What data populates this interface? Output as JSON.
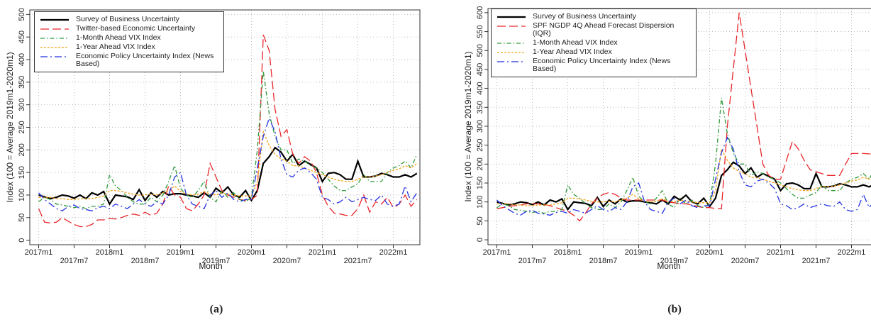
{
  "chart_data": [
    {
      "type": "line",
      "caption": "(a)",
      "x_label": "Month",
      "y_label": "Index (100 = Average 2019m1-2020m1)",
      "categories": [
        "2017m1",
        null,
        null,
        null,
        null,
        null,
        "2017m7",
        null,
        null,
        null,
        null,
        null,
        "2018m1",
        null,
        null,
        null,
        null,
        null,
        "2018m7",
        null,
        null,
        null,
        null,
        null,
        "2019m1",
        null,
        null,
        null,
        null,
        null,
        "2019m7",
        null,
        null,
        null,
        null,
        null,
        "2020m1",
        null,
        null,
        null,
        null,
        null,
        "2020m7",
        null,
        null,
        null,
        null,
        null,
        "2021m1",
        null,
        null,
        null,
        null,
        null,
        "2021m7",
        null,
        null,
        null,
        null,
        null,
        "2022m1",
        null,
        null,
        null,
        null
      ],
      "ylim": [
        -10,
        510
      ],
      "yticks": [
        0,
        50,
        100,
        150,
        200,
        250,
        300,
        350,
        400,
        450,
        500
      ],
      "grid": true,
      "series": [
        {
          "name": "Survey of Business Uncertainty",
          "color": "#000000",
          "dash": "",
          "width": 2.2,
          "values": [
            100,
            96,
            92,
            95,
            100,
            98,
            93,
            100,
            92,
            105,
            100,
            108,
            80,
            100,
            98,
            96,
            90,
            112,
            88,
            105,
            95,
            108,
            100,
            103,
            103,
            100,
            98,
            95,
            105,
            95,
            115,
            105,
            118,
            100,
            95,
            110,
            88,
            110,
            170,
            185,
            205,
            195,
            175,
            190,
            165,
            175,
            168,
            160,
            130,
            148,
            150,
            145,
            135,
            135,
            175,
            140,
            140,
            142,
            148,
            145,
            140,
            140,
            145,
            140,
            148
          ]
        },
        {
          "name": "Twitter-based Economic Uncertainty",
          "color": "#e8262a",
          "dash": "12,5",
          "width": 1.3,
          "values": [
            70,
            40,
            38,
            40,
            50,
            42,
            35,
            30,
            30,
            35,
            45,
            45,
            48,
            47,
            50,
            55,
            58,
            55,
            62,
            55,
            60,
            80,
            120,
            100,
            95,
            70,
            65,
            80,
            100,
            170,
            140,
            110,
            100,
            95,
            90,
            88,
            90,
            100,
            455,
            420,
            290,
            230,
            245,
            190,
            170,
            185,
            175,
            150,
            100,
            75,
            60,
            58,
            55,
            55,
            70,
            100,
            62,
            85,
            80,
            95,
            72,
            80,
            100,
            75,
            90
          ]
        },
        {
          "name": "1-Month Ahead VIX Index",
          "color": "#2f9a3a",
          "dash": "6,3,1.5,3",
          "width": 1.3,
          "values": [
            85,
            95,
            90,
            80,
            78,
            75,
            72,
            75,
            70,
            75,
            75,
            80,
            145,
            120,
            110,
            95,
            85,
            80,
            80,
            95,
            85,
            100,
            130,
            165,
            115,
            100,
            95,
            110,
            130,
            95,
            85,
            110,
            95,
            105,
            90,
            85,
            95,
            200,
            375,
            280,
            230,
            200,
            200,
            170,
            180,
            175,
            165,
            160,
            150,
            135,
            120,
            110,
            110,
            118,
            125,
            145,
            130,
            130,
            130,
            150,
            160,
            165,
            175,
            160,
            190
          ]
        },
        {
          "name": "1-Year Ahead VIX Index",
          "color": "#f5a21b",
          "dash": "3,2",
          "width": 1.3,
          "values": [
            95,
            95,
            95,
            92,
            92,
            90,
            90,
            92,
            92,
            92,
            95,
            98,
            110,
            110,
            108,
            105,
            102,
            100,
            100,
            102,
            100,
            105,
            110,
            120,
            108,
            102,
            100,
            102,
            108,
            102,
            100,
            105,
            102,
            100,
            98,
            98,
            98,
            130,
            240,
            210,
            190,
            180,
            175,
            165,
            165,
            160,
            155,
            150,
            145,
            140,
            135,
            132,
            130,
            130,
            135,
            140,
            140,
            142,
            145,
            150,
            155,
            158,
            165,
            160,
            170
          ]
        },
        {
          "name": "Economic Policy Uncertainty Index (News Based)",
          "color": "#2432e0",
          "dash": "10,4,2,4",
          "width": 1.3,
          "values": [
            105,
            90,
            80,
            70,
            65,
            75,
            78,
            70,
            68,
            65,
            72,
            75,
            70,
            80,
            75,
            70,
            80,
            90,
            80,
            75,
            85,
            80,
            100,
            140,
            150,
            100,
            80,
            75,
            70,
            100,
            110,
            95,
            105,
            90,
            85,
            90,
            90,
            160,
            230,
            270,
            240,
            180,
            145,
            140,
            155,
            160,
            150,
            135,
            95,
            90,
            80,
            85,
            95,
            85,
            90,
            95,
            90,
            88,
            100,
            80,
            75,
            80,
            120,
            85,
            105
          ]
        }
      ]
    },
    {
      "type": "line",
      "caption": "(b)",
      "x_label": "Month",
      "y_label": "Index (100 = Average 2019m1-2020m1)",
      "categories": [
        "2017m1",
        null,
        null,
        null,
        null,
        null,
        "2017m7",
        null,
        null,
        null,
        null,
        null,
        "2018m1",
        null,
        null,
        null,
        null,
        null,
        "2018m7",
        null,
        null,
        null,
        null,
        null,
        "2019m1",
        null,
        null,
        null,
        null,
        null,
        "2019m7",
        null,
        null,
        null,
        null,
        null,
        "2020m1",
        null,
        null,
        null,
        null,
        null,
        "2020m7",
        null,
        null,
        null,
        null,
        null,
        "2021m1",
        null,
        null,
        null,
        null,
        null,
        "2021m7",
        null,
        null,
        null,
        null,
        null,
        "2022m1",
        null,
        null,
        null,
        null
      ],
      "ylim": [
        -13,
        611
      ],
      "yticks": [
        0,
        50,
        100,
        150,
        200,
        250,
        300,
        350,
        400,
        450,
        500,
        550,
        600
      ],
      "grid": true,
      "series": [
        {
          "name": "Survey of Business Uncertainty",
          "color": "#000000",
          "dash": "",
          "width": 2.2,
          "values": [
            100,
            96,
            92,
            95,
            100,
            98,
            93,
            100,
            92,
            105,
            100,
            108,
            80,
            100,
            98,
            96,
            90,
            112,
            88,
            105,
            95,
            108,
            100,
            103,
            103,
            100,
            98,
            95,
            105,
            95,
            115,
            105,
            118,
            100,
            95,
            110,
            88,
            110,
            170,
            185,
            205,
            195,
            175,
            190,
            165,
            175,
            168,
            160,
            130,
            148,
            150,
            145,
            135,
            135,
            175,
            140,
            140,
            142,
            148,
            145,
            140,
            140,
            145,
            140,
            148
          ]
        },
        {
          "name": "SPF NGDP 4Q Ahead Forecast Dispersion (IQR)",
          "color": "#e8262a",
          "dash": "12,5",
          "width": 1.3,
          "values": [
            82,
            85,
            88,
            90,
            92,
            95,
            95,
            95,
            93,
            90,
            85,
            80,
            75,
            65,
            50,
            70,
            95,
            110,
            120,
            125,
            120,
            110,
            105,
            105,
            105,
            105,
            105,
            105,
            105,
            100,
            98,
            95,
            95,
            92,
            88,
            85,
            85,
            83,
            82,
            300,
            450,
            600,
            500,
            400,
            300,
            200,
            170,
            160,
            160,
            210,
            260,
            240,
            210,
            185,
            180,
            175,
            170,
            170,
            170,
            200,
            228,
            228,
            228,
            227,
            225
          ]
        },
        {
          "name": "1-Month Ahead VIX Index",
          "color": "#2f9a3a",
          "dash": "6,3,1.5,3",
          "width": 1.3,
          "values": [
            85,
            95,
            90,
            80,
            78,
            75,
            72,
            75,
            70,
            75,
            75,
            80,
            145,
            120,
            110,
            95,
            85,
            80,
            80,
            95,
            85,
            100,
            130,
            165,
            115,
            100,
            95,
            110,
            130,
            95,
            85,
            110,
            95,
            105,
            90,
            85,
            95,
            200,
            375,
            280,
            230,
            200,
            200,
            170,
            180,
            175,
            165,
            160,
            150,
            135,
            120,
            110,
            110,
            118,
            125,
            145,
            130,
            130,
            130,
            150,
            160,
            165,
            175,
            160,
            190
          ]
        },
        {
          "name": "1-Year Ahead VIX Index",
          "color": "#f5a21b",
          "dash": "3,2",
          "width": 1.3,
          "values": [
            95,
            95,
            95,
            92,
            92,
            90,
            90,
            92,
            92,
            92,
            95,
            98,
            110,
            110,
            108,
            105,
            102,
            100,
            100,
            102,
            100,
            105,
            110,
            120,
            108,
            102,
            100,
            102,
            108,
            102,
            100,
            105,
            102,
            100,
            98,
            98,
            98,
            130,
            240,
            210,
            190,
            180,
            175,
            165,
            165,
            160,
            155,
            150,
            145,
            140,
            135,
            132,
            130,
            130,
            135,
            140,
            140,
            142,
            145,
            150,
            155,
            158,
            165,
            160,
            170
          ]
        },
        {
          "name": "Economic Policy Uncertainty Index (News Based)",
          "color": "#2432e0",
          "dash": "10,4,2,4",
          "width": 1.3,
          "values": [
            105,
            90,
            80,
            70,
            65,
            75,
            78,
            70,
            68,
            65,
            72,
            75,
            70,
            80,
            75,
            70,
            80,
            90,
            80,
            75,
            85,
            80,
            100,
            140,
            150,
            100,
            80,
            75,
            70,
            100,
            110,
            95,
            105,
            90,
            85,
            90,
            90,
            160,
            230,
            270,
            240,
            180,
            145,
            140,
            155,
            160,
            150,
            135,
            95,
            90,
            80,
            85,
            95,
            85,
            90,
            95,
            90,
            88,
            100,
            80,
            75,
            80,
            120,
            85,
            105
          ]
        }
      ]
    }
  ]
}
